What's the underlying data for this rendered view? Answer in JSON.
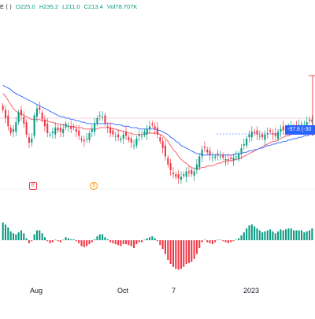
{
  "header": {
    "symbol_suffix": "E ⟨ ⟩",
    "open": "O225.0",
    "high": "H235.2",
    "low": "L211.0",
    "close": "C213.4",
    "volume": "Vol78.707K"
  },
  "colors": {
    "up": "#089981",
    "down": "#f23645",
    "ma_fast": "#f7525f",
    "ma_slow": "#2962ff",
    "tag": "#2962ff",
    "event_earnings": "#f23645",
    "event_dividend": "#ff9800"
  },
  "events": {
    "earnings_label": "E",
    "dividend_label": "$"
  },
  "price_tag": "-97.8 (-30",
  "xaxis_labels": [
    "Aug",
    "Oct",
    "7",
    "2023"
  ],
  "chart_data": [
    {
      "type": "candlestick",
      "title": "",
      "ohlc_readout": {
        "open": 225.0,
        "high": 235.2,
        "low": 211.0,
        "close": 213.4,
        "volume": "78.707K"
      },
      "x_tick_labels": [
        "Aug",
        "Oct",
        "7",
        "2023"
      ],
      "ylim": [
        150,
        330
      ],
      "closes": [
        250,
        244,
        238,
        233,
        236,
        241,
        248,
        246,
        240,
        232,
        226,
        229,
        246,
        251,
        250,
        243,
        238,
        233,
        232,
        234,
        237,
        235,
        234,
        236,
        240,
        238,
        236,
        237,
        234,
        231,
        228,
        227,
        229,
        233,
        236,
        240,
        244,
        246,
        245,
        240,
        237,
        233,
        232,
        231,
        230,
        229,
        232,
        231,
        228,
        226,
        224,
        229,
        232,
        231,
        234,
        236,
        238,
        239,
        236,
        232,
        227,
        222,
        216,
        210,
        206,
        203,
        201,
        200,
        201,
        203,
        205,
        204,
        203,
        205,
        210,
        216,
        221,
        222,
        219,
        217,
        215,
        216,
        217,
        216,
        215,
        214,
        213,
        214,
        215,
        216,
        218,
        222,
        225,
        229,
        232,
        234,
        233,
        232,
        231,
        230,
        232,
        233,
        234,
        232,
        231,
        234,
        236,
        235,
        236,
        237,
        238,
        237,
        238,
        239,
        240,
        239,
        241,
        242,
        243
      ],
      "series": [
        {
          "name": "",
          "style": "line",
          "color": "#f7525f",
          "values": [
            262,
            260,
            257,
            254,
            251,
            249,
            248,
            247,
            246,
            245,
            244,
            243,
            243,
            243,
            243,
            242,
            242,
            242,
            241,
            241,
            240,
            240,
            239,
            239,
            239,
            238,
            238,
            238,
            237,
            237,
            237,
            236,
            236,
            236,
            236,
            236,
            236,
            237,
            237,
            237,
            237,
            237,
            236,
            236,
            235,
            235,
            234,
            234,
            233,
            233,
            232,
            232,
            232,
            232,
            232,
            233,
            233,
            233,
            233,
            233,
            232,
            231,
            229,
            227,
            224,
            221,
            219,
            216,
            214,
            212,
            211,
            209,
            208,
            207,
            207,
            207,
            208,
            208,
            209,
            209,
            209,
            210,
            211,
            211,
            212,
            212,
            213,
            213,
            213,
            214,
            214,
            215,
            216,
            217,
            218,
            219,
            220,
            221,
            222,
            223,
            224,
            225,
            226,
            227,
            227,
            228,
            229,
            230,
            231,
            231,
            232,
            233,
            233,
            234,
            235,
            235,
            236,
            236,
            237
          ]
        },
        {
          "name": "",
          "style": "line",
          "color": "#2962ff",
          "values": [
            268,
            267,
            266,
            265,
            263,
            262,
            261,
            260,
            259,
            258,
            257,
            256,
            255,
            254,
            253,
            252,
            251,
            250,
            249,
            248,
            247,
            246,
            245,
            245,
            244,
            244,
            243,
            243,
            242,
            242,
            241,
            241,
            240,
            240,
            240,
            240,
            240,
            240,
            240,
            240,
            240,
            240,
            240,
            239,
            239,
            239,
            238,
            238,
            238,
            237,
            237,
            237,
            236,
            236,
            236,
            236,
            236,
            236,
            236,
            235,
            235,
            234,
            233,
            232,
            230,
            229,
            227,
            226,
            224,
            223,
            222,
            221,
            220,
            219,
            218,
            218,
            217,
            217,
            217,
            217,
            217,
            217,
            217,
            217,
            217,
            217,
            217,
            217,
            217,
            218,
            218,
            218,
            219,
            219,
            220,
            220,
            221,
            221,
            222,
            222,
            223,
            224,
            224,
            225,
            225,
            226,
            226,
            227,
            227,
            228,
            228,
            229,
            229,
            230,
            230,
            231,
            231,
            232,
            232
          ]
        }
      ]
    },
    {
      "type": "bar",
      "title": "",
      "style": "histogram",
      "values": [
        18,
        16,
        13,
        9,
        7,
        6,
        8,
        10,
        7,
        2,
        -3,
        -1,
        6,
        10,
        10,
        7,
        3,
        -1,
        -3,
        -2,
        0,
        -1,
        -2,
        0,
        3,
        2,
        1,
        1,
        -1,
        -3,
        -6,
        -7,
        -6,
        -4,
        -2,
        1,
        4,
        6,
        6,
        3,
        1,
        -2,
        -3,
        -4,
        -5,
        -6,
        -4,
        -4,
        -5,
        -6,
        -8,
        -4,
        -2,
        -2,
        0,
        2,
        3,
        4,
        2,
        -1,
        -5,
        -9,
        -14,
        -20,
        -24,
        -27,
        -29,
        -30,
        -29,
        -27,
        -24,
        -23,
        -22,
        -19,
        -14,
        -8,
        -2,
        0,
        -2,
        -3,
        -4,
        -2,
        0,
        0,
        -1,
        -2,
        -3,
        -2,
        -1,
        0,
        2,
        5,
        8,
        12,
        15,
        16,
        14,
        12,
        10,
        8,
        9,
        10,
        11,
        9,
        7,
        9,
        11,
        10,
        11,
        12,
        12,
        10,
        10,
        10,
        10,
        8,
        9,
        10,
        12
      ]
    }
  ]
}
